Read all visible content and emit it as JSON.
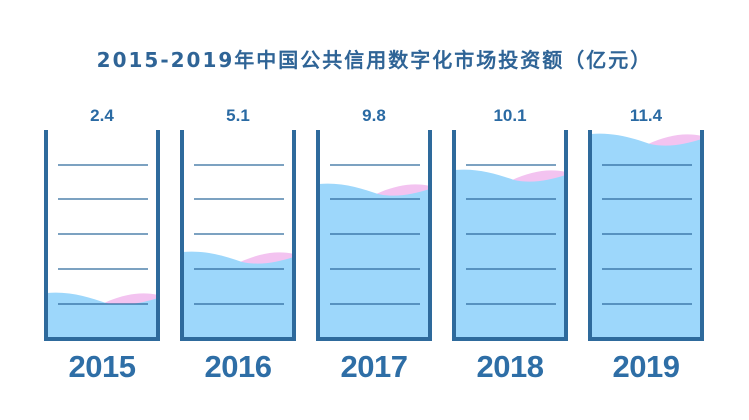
{
  "title": "2015-2019年中国公共信用数字化市场投资额（亿元）",
  "colors": {
    "title": "#2f6496",
    "cup_border": "#2e6a9c",
    "water": "#9dd7fb",
    "foam": "#f3c3f0",
    "gridline": "#2e6a9c",
    "value_label": "#2a6aa3",
    "year_label": "#2e6ea6"
  },
  "cups": [
    {
      "year": "2015",
      "value": "2.4"
    },
    {
      "year": "2016",
      "value": "5.1"
    },
    {
      "year": "2017",
      "value": "9.8"
    },
    {
      "year": "2018",
      "value": "10.1"
    },
    {
      "year": "2019",
      "value": "11.4"
    }
  ],
  "chart_data": {
    "type": "bar",
    "title": "2015-2019年中国公共信用数字化市场投资额（亿元）",
    "categories": [
      "2015",
      "2016",
      "2017",
      "2018",
      "2019"
    ],
    "values": [
      2.4,
      5.1,
      9.8,
      10.1,
      11.4
    ],
    "xlabel": "",
    "ylabel": "亿元",
    "style": "water-filled beakers with 5 horizontal level lines",
    "grid": true,
    "legend": null
  }
}
